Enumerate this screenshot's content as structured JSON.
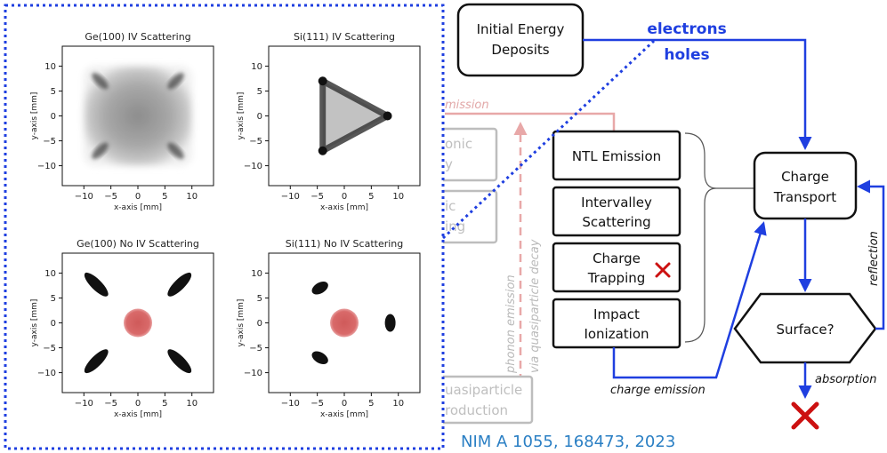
{
  "plots": {
    "titles": [
      "Ge(100) IV Scattering",
      "Si(111) IV Scattering",
      "Ge(100) No IV Scattering",
      "Si(111) No IV Scattering"
    ],
    "xlabel": "x-axis [mm]",
    "ylabel": "y-axis [mm]",
    "xticks": [
      "−10",
      "−5",
      "0",
      "5",
      "10"
    ],
    "yticks": [
      "10",
      "5",
      "0",
      "−5",
      "−10"
    ]
  },
  "diagram": {
    "initial_energy": [
      "Initial Energy",
      "Deposits"
    ],
    "electrons": "electrons",
    "holes": "holes",
    "emission_fragment": "mission",
    "ntl": "NTL Emission",
    "intervalley": [
      "Intervalley",
      "Scattering"
    ],
    "charge_trapping": [
      "Charge",
      "Trapping"
    ],
    "impact_ionization": [
      "Impact",
      "Ionization"
    ],
    "charge_transport": [
      "Charge",
      "Transport"
    ],
    "surface": "Surface?",
    "reflection": "reflection",
    "absorption": "absorption",
    "charge_emission": "charge emission",
    "phonon_emission": "phonon emission",
    "quasiparticle_decay": "via quasiparticle decay",
    "ghost1": [
      "onic",
      "y"
    ],
    "ghost2": [
      "ic",
      "ing"
    ],
    "ghost3": [
      "uasiparticle",
      "roduction"
    ],
    "citation": "NIM A 1055, 168473, 2023"
  },
  "colors": {
    "charge_flow": "#1f3fe0",
    "phonon_flow": "#e8a8a8",
    "ghost_box": "#bdbdbd",
    "cross": "#cc1111",
    "cite": "#2a7fc4"
  }
}
